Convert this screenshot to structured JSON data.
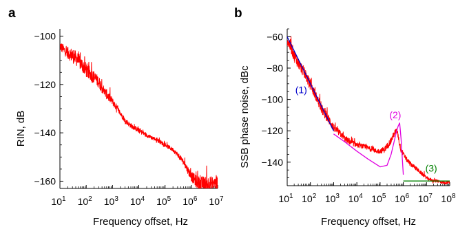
{
  "chart_data": [
    {
      "panel_label": "a",
      "type": "line",
      "xscale": "log",
      "xlim": [
        10,
        10000000
      ],
      "ylim": [
        -163,
        -97
      ],
      "xlabel": "Frequency offset, Hz",
      "ylabel": "RIN, dB",
      "xtick_labels": [
        {
          "base": "10",
          "exp": "1"
        },
        {
          "base": "10",
          "exp": "2"
        },
        {
          "base": "10",
          "exp": "3"
        },
        {
          "base": "10",
          "exp": "4"
        },
        {
          "base": "10",
          "exp": "5"
        },
        {
          "base": "10",
          "exp": "6"
        },
        {
          "base": "10",
          "exp": "7"
        }
      ],
      "yticks": [
        -100,
        -120,
        -140,
        -160
      ],
      "ytick_labels": [
        "−100",
        "−120",
        "−140",
        "−160"
      ],
      "grid": false,
      "series": [
        {
          "color": "#ff0000",
          "x": [
            10,
            15,
            20,
            30,
            50,
            70,
            100,
            150,
            200,
            300,
            500,
            700,
            1000,
            1500,
            2000,
            3000,
            5000,
            7000,
            10000,
            20000,
            50000,
            100000,
            200000,
            300000,
            500000,
            700000,
            1000000,
            1500000,
            2000000,
            3000000,
            5000000,
            7000000,
            10000000
          ],
          "y": [
            -104,
            -106,
            -107,
            -108,
            -110,
            -112,
            -114,
            -116,
            -117,
            -119,
            -123,
            -125,
            -127,
            -130,
            -132,
            -135,
            -137,
            -138,
            -139,
            -141,
            -143,
            -145,
            -147,
            -149,
            -152,
            -155,
            -158,
            -160,
            -161,
            -161,
            -161,
            -161,
            -161
          ],
          "noise": [
            2,
            2,
            2.5,
            3,
            3,
            3,
            3,
            3,
            2.5,
            2.5,
            2,
            2,
            1.5,
            1.5,
            1,
            1,
            1,
            1,
            1,
            0.8,
            0.8,
            0.8,
            0.8,
            1,
            1.2,
            1.5,
            2,
            2.5,
            3,
            3,
            3,
            3,
            3
          ]
        }
      ]
    },
    {
      "panel_label": "b",
      "type": "line",
      "xscale": "log",
      "xlim": [
        10,
        100000000
      ],
      "ylim": [
        -155,
        -55
      ],
      "xlabel": "Frequency offset, Hz",
      "ylabel": "SSB phase noise, dBc",
      "xtick_labels": [
        {
          "base": "10",
          "exp": "1"
        },
        {
          "base": "10",
          "exp": "2"
        },
        {
          "base": "10",
          "exp": "3"
        },
        {
          "base": "10",
          "exp": "4"
        },
        {
          "base": "10",
          "exp": "5"
        },
        {
          "base": "10",
          "exp": "6"
        },
        {
          "base": "10",
          "exp": "7"
        },
        {
          "base": "10",
          "exp": "8"
        }
      ],
      "yticks": [
        -60,
        -80,
        -100,
        -120,
        -140
      ],
      "ytick_labels": [
        "−60",
        "−80",
        "−100",
        "−120",
        "−140"
      ],
      "grid": false,
      "series": [
        {
          "color": "#ff0000",
          "x": [
            10,
            15,
            20,
            30,
            50,
            70,
            100,
            150,
            200,
            300,
            500,
            700,
            1000,
            2000,
            3000,
            5000,
            10000,
            20000,
            30000,
            50000,
            70000,
            100000,
            150000,
            200000,
            300000,
            400000,
            500000,
            600000,
            700000,
            800000,
            1000000,
            1500000,
            2000000,
            3000000,
            5000000,
            10000000,
            20000000,
            30000000,
            50000000,
            100000000
          ],
          "y": [
            -62,
            -67,
            -72,
            -77,
            -82,
            -86,
            -91,
            -96,
            -100,
            -106,
            -111,
            -114,
            -118,
            -122,
            -125,
            -127,
            -129,
            -130,
            -131,
            -132,
            -133,
            -133,
            -132,
            -130,
            -126,
            -122,
            -120,
            -123,
            -129,
            -132,
            -135,
            -139,
            -141,
            -143,
            -146,
            -150,
            -152,
            -152,
            -153,
            -153
          ],
          "noise": [
            4,
            4,
            4,
            3.5,
            3.5,
            3.5,
            3,
            3,
            3,
            3,
            3,
            3,
            2.5,
            2,
            2,
            2,
            1.5,
            1.5,
            1.5,
            1.5,
            1.5,
            1.5,
            2,
            2,
            2,
            2,
            2,
            2,
            2,
            2,
            1.5,
            1.5,
            1.5,
            1.2,
            1.2,
            1,
            1,
            1,
            1,
            1
          ]
        },
        {
          "name": "(1)",
          "color": "#0000cc",
          "x": [
            10,
            1000
          ],
          "y": [
            -60,
            -120
          ]
        },
        {
          "name": "(2)",
          "color": "#e000e0",
          "x": [
            1000,
            3000,
            10000,
            30000,
            100000,
            200000,
            300000,
            400000,
            500000,
            600000,
            700000,
            800000,
            1000000
          ],
          "y": [
            -122,
            -127,
            -133,
            -138,
            -143,
            -142,
            -135,
            -127,
            -121,
            -117,
            -115,
            -125,
            -148
          ]
        },
        {
          "name": "(3)",
          "color": "#008000",
          "x": [
            1000000,
            10000000,
            100000000
          ],
          "y": [
            -152,
            -152,
            -152
          ]
        }
      ],
      "annotations": [
        {
          "text": "(1)",
          "color": "#0000cc",
          "x": 40,
          "y": -96
        },
        {
          "text": "(2)",
          "color": "#e000e0",
          "x": 450000,
          "y": -112
        },
        {
          "text": "(3)",
          "color": "#008000",
          "x": 16000000,
          "y": -146
        }
      ]
    }
  ]
}
